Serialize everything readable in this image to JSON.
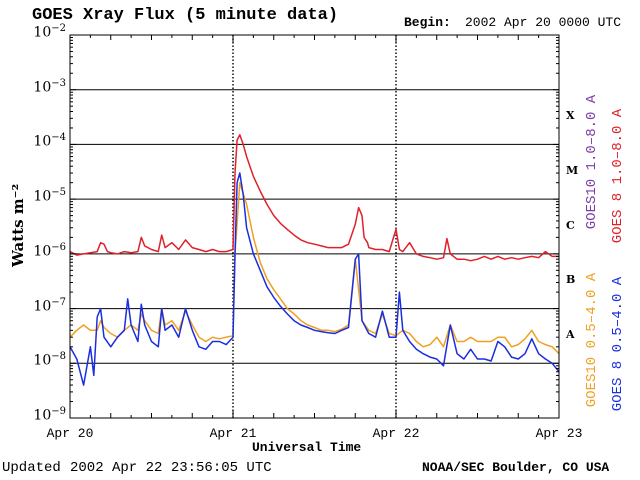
{
  "header": {
    "title": "GOES Xray Flux (5 minute data)",
    "begin_label": "Begin:",
    "begin_value": "2002 Apr 20 0000 UTC"
  },
  "footer": {
    "updated_label": "Updated",
    "updated_value": "2002 Apr 22 23:56:05 UTC",
    "credit": "NOAA/SEC Boulder, CO USA"
  },
  "chart_data": {
    "type": "line",
    "title": "GOES Xray Flux (5 minute data)",
    "xlabel": "Universal Time",
    "ylabel": "Watts m⁻²",
    "y_scale": "log",
    "ylim": [
      1e-09,
      0.01
    ],
    "xlim": [
      0,
      72
    ],
    "x_unit": "hours since 2002 Apr 20 0000 UTC",
    "x_ticks": [
      {
        "x": 0,
        "label": "Apr 20"
      },
      {
        "x": 24,
        "label": "Apr 21"
      },
      {
        "x": 48,
        "label": "Apr 22"
      },
      {
        "x": 72,
        "label": "Apr 23"
      }
    ],
    "y_ticks": [
      {
        "exp": -9,
        "base": "10",
        "sup": "−9"
      },
      {
        "exp": -8,
        "base": "10",
        "sup": "−8"
      },
      {
        "exp": -7,
        "base": "10",
        "sup": "−7"
      },
      {
        "exp": -6,
        "base": "10",
        "sup": "−6"
      },
      {
        "exp": -5,
        "base": "10",
        "sup": "−5"
      },
      {
        "exp": -4,
        "base": "10",
        "sup": "−4"
      },
      {
        "exp": -3,
        "base": "10",
        "sup": "−3"
      },
      {
        "exp": -2,
        "base": "10",
        "sup": "−2"
      }
    ],
    "flare_classes": [
      {
        "label": "A",
        "exp": -8
      },
      {
        "label": "B",
        "exp": -7
      },
      {
        "label": "C",
        "exp": -6
      },
      {
        "label": "M",
        "exp": -5
      },
      {
        "label": "X",
        "exp": -4
      }
    ],
    "grid": true,
    "legend_placement": "right",
    "legend": [
      {
        "text": "GOES10 1.0–8.0 A",
        "color": "#7a3aa8"
      },
      {
        "text": "GOES 8 1.0–8.0 A",
        "color": "#e0202a"
      },
      {
        "text": "GOES10 0.5–4.0 A",
        "color": "#f0a020"
      },
      {
        "text": "GOES 8 0.5–4.0 A",
        "color": "#1a2ee0"
      }
    ],
    "series": [
      {
        "name": "GOES 8 1.0–8.0 A",
        "color": "#e0202a",
        "x": [
          0,
          1,
          2,
          3,
          4,
          4.5,
          5,
          5.5,
          6,
          7,
          8,
          9,
          10,
          10.5,
          11,
          12,
          13,
          13.5,
          14,
          15,
          16,
          17,
          18,
          19,
          20,
          21,
          22,
          23,
          24,
          24.3,
          24.6,
          25,
          25.5,
          26,
          27,
          28,
          29,
          30,
          31,
          32,
          33,
          34,
          35,
          36,
          37,
          38,
          39,
          40,
          41,
          42,
          42.5,
          43,
          43.3,
          43.8,
          44,
          45,
          46,
          47,
          48,
          48.5,
          49,
          50,
          51,
          52,
          53,
          54,
          55,
          55.5,
          56,
          57,
          58,
          59,
          60,
          61,
          62,
          63,
          64,
          65,
          66,
          67,
          68,
          69,
          70,
          71,
          72
        ],
        "y": [
          1.1e-06,
          9.5e-07,
          1e-06,
          1.05e-06,
          1.1e-06,
          1.6e-06,
          1.5e-06,
          1.1e-06,
          1.05e-06,
          1e-06,
          1.1e-06,
          1.05e-06,
          1.1e-06,
          2e-06,
          1.4e-06,
          1.2e-06,
          1.1e-06,
          2.2e-06,
          1.3e-06,
          1.6e-06,
          1.2e-06,
          1.8e-06,
          1.3e-06,
          1.2e-06,
          1.1e-06,
          1.2e-06,
          1.1e-06,
          1.1e-06,
          1.2e-06,
          3e-05,
          0.00012,
          0.00015,
          0.0001,
          6e-05,
          2.6e-05,
          1.4e-05,
          8e-06,
          5e-06,
          3.6e-06,
          2.8e-06,
          2.2e-06,
          1.8e-06,
          1.6e-06,
          1.5e-06,
          1.4e-06,
          1.3e-06,
          1.3e-06,
          1.3e-06,
          1.5e-06,
          3.5e-06,
          7e-06,
          5e-06,
          2e-06,
          1.6e-06,
          1.3e-06,
          1.2e-06,
          1.2e-06,
          1.1e-06,
          2.8e-06,
          1.2e-06,
          1.1e-06,
          1.6e-06,
          1e-06,
          9e-07,
          8.5e-07,
          8e-07,
          8.5e-07,
          1.9e-06,
          1e-06,
          8e-07,
          8e-07,
          7.5e-07,
          8e-07,
          9e-07,
          8e-07,
          9e-07,
          8e-07,
          8.5e-07,
          8e-07,
          8.5e-07,
          9e-07,
          8.5e-07,
          1.1e-06,
          9e-07,
          9e-07
        ]
      },
      {
        "name": "GOES10 0.5–4.0 A",
        "color": "#f0a020",
        "x": [
          0,
          1,
          2,
          3,
          4,
          4.5,
          5,
          6,
          7,
          8,
          9,
          10,
          10.5,
          11,
          12,
          13,
          13.5,
          14,
          15,
          16,
          17,
          18,
          19,
          20,
          21,
          22,
          23,
          24,
          24.3,
          25,
          26,
          27,
          28,
          29,
          30,
          31,
          32,
          33,
          34,
          35,
          36,
          37,
          38,
          39,
          40,
          41,
          42,
          43,
          44,
          45,
          46,
          47,
          48,
          49,
          50,
          51,
          52,
          53,
          54,
          55,
          56,
          57,
          58,
          59,
          60,
          61,
          62,
          63,
          64,
          65,
          66,
          67,
          68,
          69,
          70,
          71,
          72
        ],
        "y": [
          3e-08,
          4e-08,
          5e-08,
          4e-08,
          4e-08,
          6e-08,
          4.5e-08,
          3.5e-08,
          3e-08,
          4e-08,
          5e-08,
          4e-08,
          8e-08,
          6e-08,
          4e-08,
          3.5e-08,
          1e-07,
          5e-08,
          6e-08,
          4e-08,
          9e-08,
          5e-08,
          3e-08,
          2.5e-08,
          3e-08,
          2.8e-08,
          3e-08,
          3.2e-08,
          1e-06,
          2e-05,
          8e-06,
          2e-06,
          7e-07,
          3.5e-07,
          2.2e-07,
          1.5e-07,
          1e-07,
          8e-08,
          6e-08,
          5e-08,
          4.5e-08,
          4e-08,
          4e-08,
          3.8e-08,
          4.2e-08,
          5e-08,
          8e-07,
          6e-08,
          4e-08,
          3.5e-08,
          8e-08,
          3.5e-08,
          3.2e-08,
          4e-08,
          3.5e-08,
          2.5e-08,
          2e-08,
          2.2e-08,
          3e-08,
          2e-08,
          5e-08,
          2.5e-08,
          2.5e-08,
          3e-08,
          2.5e-08,
          2.5e-08,
          2.5e-08,
          3e-08,
          3e-08,
          2e-08,
          2.2e-08,
          2.8e-08,
          4e-08,
          2.5e-08,
          2.2e-08,
          2e-08,
          1.5e-08
        ]
      },
      {
        "name": "GOES 8 0.5–4.0 A",
        "color": "#1a2ee0",
        "x": [
          0,
          1,
          2,
          3,
          3.5,
          4,
          4.5,
          5,
          6,
          7,
          8,
          8.5,
          9,
          10,
          10.5,
          11,
          12,
          13,
          13.5,
          14,
          15,
          16,
          17,
          18,
          19,
          20,
          21,
          22,
          23,
          24,
          24.3,
          24.6,
          25,
          25.5,
          26,
          27,
          28,
          29,
          30,
          31,
          32,
          33,
          34,
          35,
          36,
          37,
          38,
          39,
          40,
          41,
          42,
          42.5,
          43,
          44,
          45,
          46,
          47,
          48,
          48.5,
          49,
          50,
          51,
          52,
          53,
          54,
          55,
          56,
          57,
          58,
          59,
          60,
          61,
          62,
          63,
          64,
          65,
          66,
          67,
          68,
          69,
          70,
          71,
          72
        ],
        "y": [
          2e-08,
          1.2e-08,
          4e-09,
          2e-08,
          6e-09,
          7e-08,
          1e-07,
          3e-08,
          2e-08,
          3e-08,
          4e-08,
          1.5e-07,
          5e-08,
          2.5e-08,
          1.2e-07,
          5e-08,
          2.5e-08,
          2e-08,
          1e-07,
          4e-08,
          5e-08,
          3e-08,
          1e-07,
          4e-08,
          2e-08,
          1.8e-08,
          2.5e-08,
          2.5e-08,
          2.2e-08,
          3e-08,
          1e-06,
          2e-05,
          3e-05,
          1.2e-05,
          3e-06,
          1e-06,
          5e-07,
          2.5e-07,
          1.6e-07,
          1.1e-07,
          8e-08,
          6e-08,
          5e-08,
          4.5e-08,
          4e-08,
          3.8e-08,
          3.6e-08,
          3.5e-08,
          4e-08,
          4.5e-08,
          8e-07,
          1e-06,
          6e-08,
          3.5e-08,
          3e-08,
          9e-08,
          3e-08,
          3e-08,
          2e-07,
          4e-08,
          2.5e-08,
          1.8e-08,
          1.5e-08,
          1.3e-08,
          1.2e-08,
          9e-09,
          5e-08,
          1.5e-08,
          1.2e-08,
          1.8e-08,
          1.2e-08,
          1.2e-08,
          1.1e-08,
          2.5e-08,
          2e-08,
          1.3e-08,
          1.2e-08,
          1.5e-08,
          2.8e-08,
          1.5e-08,
          1.2e-08,
          1e-08,
          7e-09
        ]
      }
    ]
  }
}
